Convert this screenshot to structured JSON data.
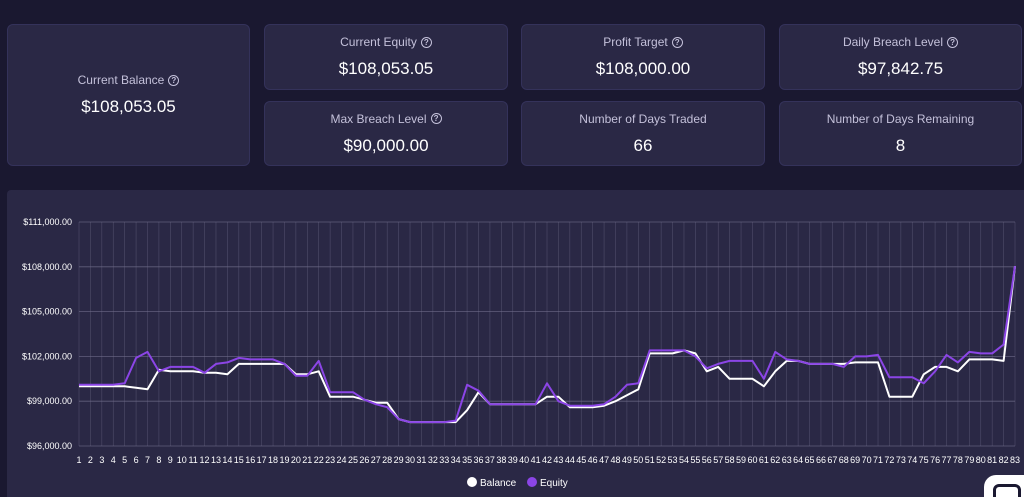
{
  "stats": {
    "current_balance": {
      "label": "Current Balance",
      "value": "$108,053.05"
    },
    "current_equity": {
      "label": "Current Equity",
      "value": "$108,053.05"
    },
    "profit_target": {
      "label": "Profit Target",
      "value": "$108,000.00"
    },
    "daily_breach_level": {
      "label": "Daily Breach Level",
      "value": "$97,842.75"
    },
    "max_breach_level": {
      "label": "Max Breach Level",
      "value": "$90,000.00"
    },
    "days_traded": {
      "label": "Number of Days Traded",
      "value": "66"
    },
    "days_remaining": {
      "label": "Number of Days Remaining",
      "value": "8"
    }
  },
  "help_glyph": "?",
  "colors": {
    "background": "#1a1830",
    "card": "#2a2845",
    "balance": "#ffffff",
    "equity": "#8b45e6",
    "grid": "#6f6c8a"
  },
  "chart_data": {
    "type": "line",
    "ylim": [
      96000,
      111000
    ],
    "yticks": [
      96000,
      99000,
      102000,
      105000,
      108000,
      111000
    ],
    "ytick_labels": [
      "$96,000.00",
      "$99,000.00",
      "$102,000.00",
      "$105,000.00",
      "$108,000.00",
      "$111,000.00"
    ],
    "x": [
      1,
      2,
      3,
      4,
      5,
      6,
      7,
      8,
      9,
      10,
      11,
      12,
      13,
      14,
      15,
      16,
      17,
      18,
      19,
      20,
      21,
      22,
      23,
      24,
      25,
      26,
      27,
      28,
      29,
      30,
      31,
      32,
      33,
      34,
      35,
      36,
      37,
      38,
      39,
      40,
      41,
      42,
      43,
      44,
      45,
      46,
      47,
      48,
      49,
      50,
      51,
      52,
      53,
      54,
      55,
      56,
      57,
      58,
      59,
      60,
      61,
      62,
      63,
      64,
      65,
      66,
      67,
      68,
      69,
      70,
      71,
      72,
      73,
      74,
      75,
      76,
      77,
      78,
      79,
      80,
      81,
      82,
      83
    ],
    "legend_position": "bottom",
    "series": [
      {
        "name": "Balance",
        "color": "#ffffff",
        "values": [
          100000,
          100000,
          100000,
          100000,
          100000,
          99900,
          99800,
          101100,
          101000,
          101000,
          101000,
          100900,
          100900,
          100800,
          101500,
          101500,
          101500,
          101500,
          101500,
          100800,
          100800,
          101000,
          99300,
          99300,
          99300,
          99100,
          98900,
          98900,
          97800,
          97600,
          97600,
          97600,
          97600,
          97600,
          98400,
          99600,
          98800,
          98800,
          98800,
          98800,
          98800,
          99300,
          99300,
          98600,
          98600,
          98600,
          98700,
          99000,
          99400,
          99800,
          102200,
          102200,
          102200,
          102400,
          102200,
          101000,
          101300,
          100500,
          100500,
          100500,
          100000,
          101000,
          101700,
          101700,
          101500,
          101500,
          101500,
          101500,
          101600,
          101600,
          101600,
          99300,
          99300,
          99300,
          100800,
          101300,
          101300,
          101000,
          101800,
          101800,
          101800,
          101700,
          108050
        ]
      },
      {
        "name": "Equity",
        "color": "#8b45e6",
        "values": [
          100100,
          100100,
          100100,
          100100,
          100200,
          101900,
          102300,
          101000,
          101300,
          101300,
          101300,
          100900,
          101500,
          101600,
          101900,
          101800,
          101800,
          101800,
          101500,
          100700,
          100700,
          101700,
          99600,
          99600,
          99600,
          99100,
          98800,
          98600,
          97800,
          97600,
          97600,
          97600,
          97600,
          97700,
          100100,
          99700,
          98800,
          98800,
          98800,
          98800,
          98800,
          100200,
          99000,
          98700,
          98700,
          98700,
          98800,
          99300,
          100100,
          100200,
          102400,
          102400,
          102400,
          102400,
          102000,
          101200,
          101500,
          101700,
          101700,
          101700,
          100500,
          102300,
          101800,
          101700,
          101500,
          101500,
          101500,
          101300,
          102000,
          102000,
          102100,
          100600,
          100600,
          100600,
          100200,
          101000,
          102100,
          101600,
          102300,
          102200,
          102200,
          102800,
          108050
        ]
      }
    ]
  }
}
